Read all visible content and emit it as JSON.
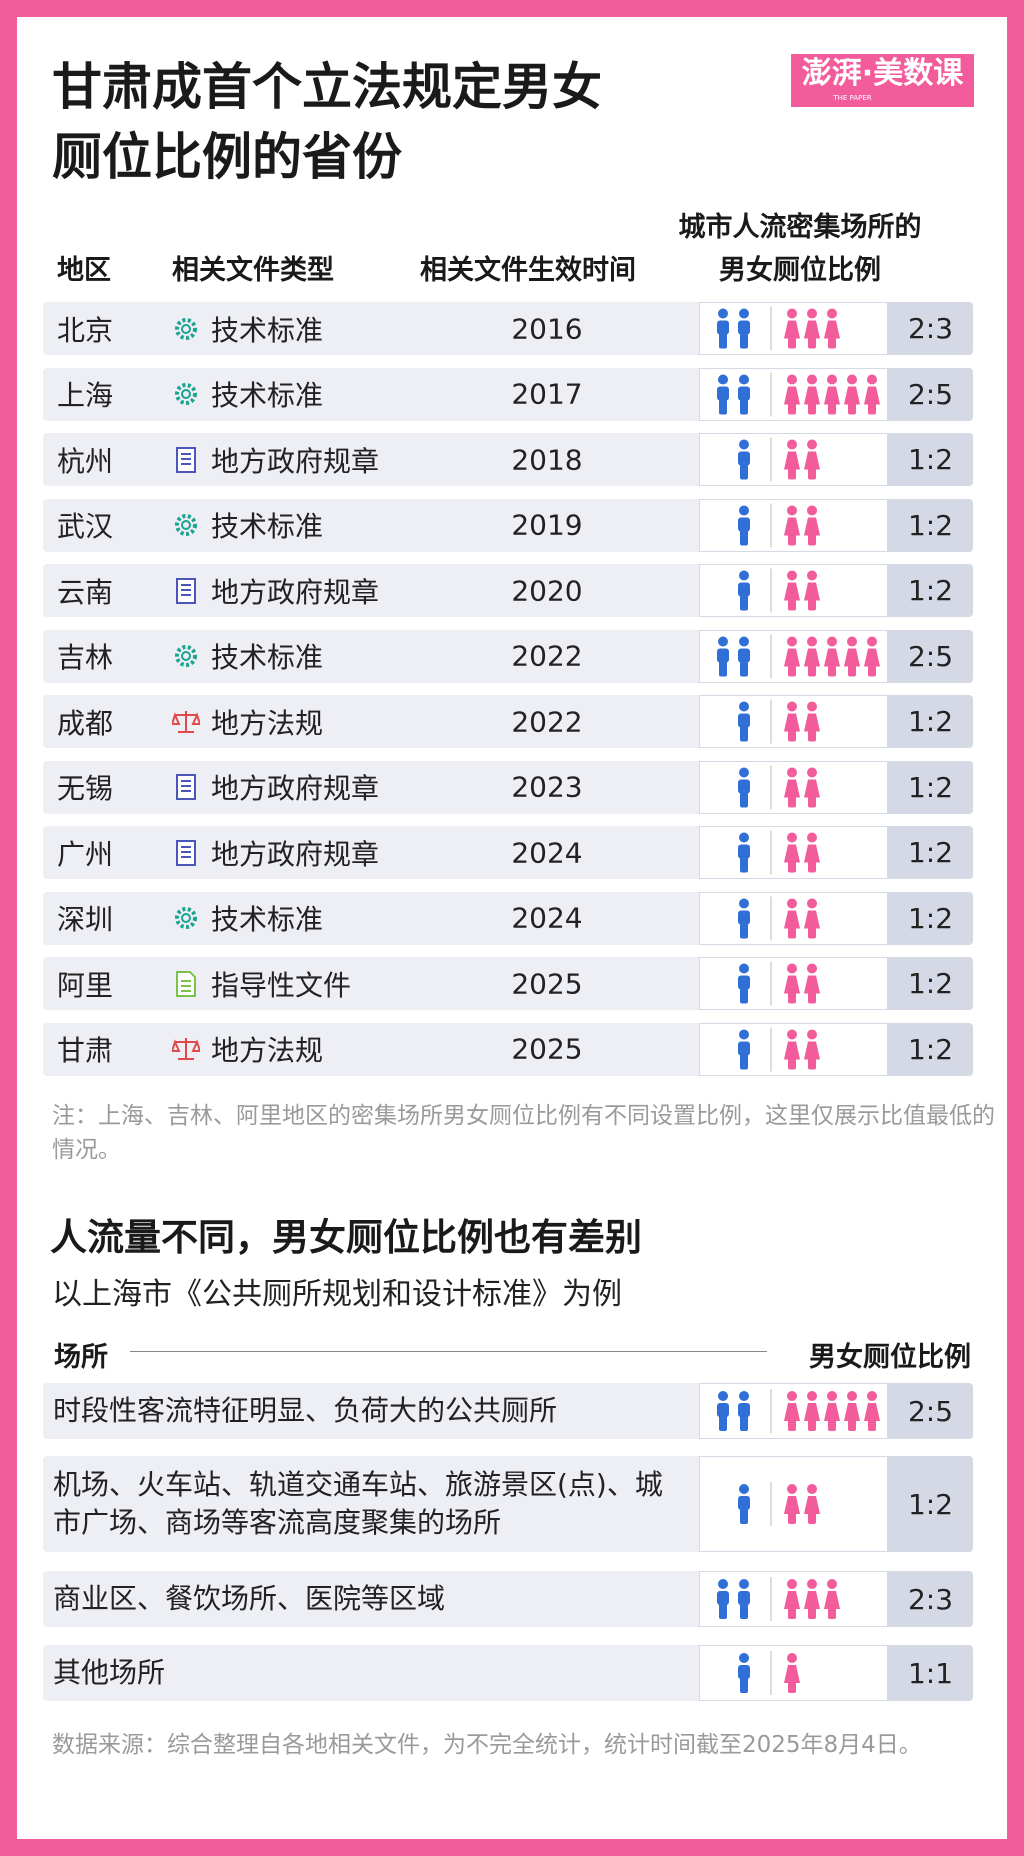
{
  "header": {
    "title": [
      "甘肃成首个立法规定男女",
      "厕位比例的省份"
    ],
    "logo": "澎湃·美数课",
    "logo_sub": "THE PAPER"
  },
  "table": {
    "columns": [
      "地区",
      "相关文件类型",
      "相关文件生效时间",
      [
        "城市人流密集场所的",
        "男女厕位比例"
      ]
    ],
    "rows": [
      [
        "北京",
        "技术标准",
        "2016",
        "2:3"
      ],
      [
        "上海",
        "技术标准",
        "2017",
        "2:5"
      ],
      [
        "杭州",
        "地方政府规章",
        "2018",
        "1:2"
      ],
      [
        "武汉",
        "技术标准",
        "2019",
        "1:2"
      ],
      [
        "云南",
        "地方政府规章",
        "2020",
        "1:2"
      ],
      [
        "吉林",
        "技术标准",
        "2022",
        "2:5"
      ],
      [
        "成都",
        "地方法规",
        "2022",
        "1:2"
      ],
      [
        "无锡",
        "地方政府规章",
        "2023",
        "1:2"
      ],
      [
        "广州",
        "地方政府规章",
        "2024",
        "1:2"
      ],
      [
        "深圳",
        "技术标准",
        "2024",
        "1:2"
      ],
      [
        "阿里",
        "指导性文件",
        "2025",
        "1:2"
      ],
      [
        "甘肃",
        "地方法规",
        "2025",
        "1:2"
      ]
    ],
    "note": "注：上海、吉林、阿里地区的密集场所男女厕位比例有不同设置比例，这里仅展示比值最低的情况。"
  },
  "section2": {
    "title": "人流量不同，男女厕位比例也有差别",
    "subtitle": "以上海市《公共厕所规划和设计标准》为例",
    "columns": [
      "场所",
      "男女厕位比例"
    ],
    "rows": [
      [
        "时段性客流特征明显、负荷大的公共厕所",
        "2:5"
      ],
      [
        "机场、火车站、轨道交通车站、旅游景区(点)、城市广场、商场等客流高度聚集的场所",
        "1:2"
      ],
      [
        "商业区、餐饮场所、医院等区域",
        "2:3"
      ],
      [
        "其他场所",
        "1:1"
      ]
    ]
  },
  "footer": {
    "source": "数据来源：综合整理自各地相关文件，为不完全统计，统计时间截至2025年8月4日。"
  }
}
